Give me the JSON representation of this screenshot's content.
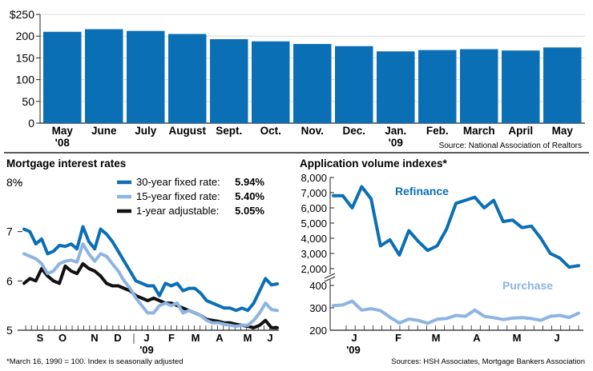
{
  "colors": {
    "blue": "#0b6fb5",
    "light_blue": "#8db4e2",
    "black": "#111111",
    "axis": "#222222"
  },
  "chart_data": [
    {
      "type": "bar",
      "title": "",
      "ylabel": "",
      "ylim": [
        0,
        250
      ],
      "yticks": [
        "$250",
        "200",
        "150",
        "100",
        "50",
        "0"
      ],
      "categories": [
        "May\n'08",
        "June",
        "July",
        "August",
        "Sept.",
        "Oct.",
        "Nov.",
        "Dec.",
        "Jan.\n'09",
        "Feb.",
        "March",
        "April",
        "May"
      ],
      "values": [
        210,
        216,
        212,
        205,
        193,
        188,
        182,
        177,
        165,
        168,
        170,
        167,
        174
      ],
      "source": "Source: National Association of Realtors"
    },
    {
      "type": "line",
      "title": "Mortgage interest rates",
      "ylim": [
        5,
        8
      ],
      "yticks": [
        "8%",
        "7",
        "6",
        "5"
      ],
      "xlabels": [
        "S",
        "O",
        "N",
        "D",
        "J",
        "F",
        "M",
        "A",
        "M",
        "J"
      ],
      "year_label": "'09",
      "footnote": "*March 16, 1990 = 100. Index is seasonally adjusted",
      "series": [
        {
          "name": "30-year fixed rate:",
          "last": "5.94%",
          "color": "#0b6fb5",
          "values": [
            7.05,
            7.0,
            6.75,
            6.85,
            6.55,
            6.6,
            6.72,
            6.7,
            6.75,
            6.65,
            7.1,
            6.8,
            6.65,
            7.05,
            6.95,
            6.8,
            6.6,
            6.4,
            6.2,
            6.0,
            5.95,
            5.9,
            5.9,
            5.7,
            5.95,
            5.9,
            5.95,
            5.8,
            5.85,
            5.85,
            5.75,
            5.6,
            5.55,
            5.5,
            5.45,
            5.45,
            5.4,
            5.45,
            5.4,
            5.55,
            5.8,
            6.05,
            5.92,
            5.94
          ]
        },
        {
          "name": "15-year fixed rate:",
          "last": "5.40%",
          "color": "#8db4e2",
          "values": [
            6.55,
            6.5,
            6.45,
            6.35,
            6.15,
            6.2,
            6.35,
            6.4,
            6.42,
            6.38,
            6.75,
            6.55,
            6.4,
            6.55,
            6.5,
            6.35,
            6.2,
            6.0,
            5.85,
            5.65,
            5.5,
            5.35,
            5.35,
            5.5,
            5.55,
            5.5,
            5.55,
            5.35,
            5.4,
            5.35,
            5.3,
            5.2,
            5.15,
            5.15,
            5.12,
            5.1,
            5.08,
            5.1,
            5.1,
            5.2,
            5.35,
            5.55,
            5.42,
            5.4
          ]
        },
        {
          "name": "1-year adjustable:",
          "last": "5.05%",
          "color": "#111111",
          "values": [
            5.95,
            6.05,
            6.0,
            6.25,
            6.1,
            6.0,
            5.95,
            6.3,
            6.2,
            6.15,
            6.35,
            6.25,
            6.2,
            6.1,
            5.95,
            5.9,
            5.9,
            5.85,
            5.8,
            5.7,
            5.65,
            5.6,
            5.65,
            5.6,
            5.55,
            5.55,
            5.5,
            5.45,
            5.4,
            5.35,
            5.3,
            5.22,
            5.2,
            5.18,
            5.15,
            5.15,
            5.12,
            5.1,
            5.08,
            5.05,
            5.1,
            5.2,
            5.05,
            5.05
          ]
        }
      ]
    },
    {
      "type": "line",
      "title": "Application volume indexes*",
      "yticks_upper": [
        "8,000",
        "7,000",
        "6,000",
        "5,000",
        "4,000",
        "3,000",
        "2,000"
      ],
      "yticks_lower": [
        "400",
        "300",
        "200"
      ],
      "xlabels": [
        "J",
        "F",
        "M",
        "A",
        "M",
        "J"
      ],
      "year_label": "'09",
      "source": "Sources: HSH Associates, Mortgage Bankers Association",
      "series": [
        {
          "name": "Refinance",
          "color": "#0b6fb5",
          "values": [
            6800,
            6800,
            6000,
            7400,
            6600,
            3500,
            3900,
            2900,
            4500,
            3800,
            3200,
            3500,
            4600,
            6300,
            6500,
            6700,
            6000,
            6500,
            5100,
            5200,
            4700,
            4800,
            4000,
            3000,
            2700,
            2100,
            2200
          ]
        },
        {
          "name": "Purchase",
          "color": "#8db4e2",
          "values": [
            310,
            313,
            330,
            290,
            296,
            288,
            258,
            232,
            250,
            244,
            231,
            249,
            252,
            266,
            262,
            290,
            262,
            256,
            248,
            254,
            256,
            252,
            244,
            262,
            266,
            257,
            276
          ]
        }
      ]
    }
  ]
}
